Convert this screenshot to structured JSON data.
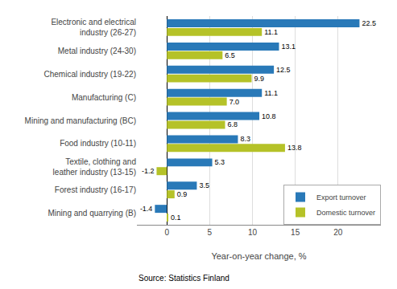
{
  "chart_data": {
    "type": "bar",
    "orientation": "horizontal",
    "categories": [
      "Electronic and electrical\nindustry (26-27)",
      "Metal industry (24-30)",
      "Chemical industry (19-22)",
      "Manufacturing (C)",
      "Mining and manufacturing (BC)",
      "Food industry (10-11)",
      "Textile, clothing and\nleather industry (13-15)",
      "Forest industry (16-17)",
      "Mining and quarrying (B)"
    ],
    "series": [
      {
        "name": "Export turnover",
        "color": "#2979b8",
        "values": [
          22.5,
          13.1,
          12.5,
          11.1,
          10.8,
          8.3,
          5.3,
          3.5,
          -1.4
        ],
        "value_labels": [
          "22.5",
          "13.1",
          "12.5",
          "11.1",
          "10.8",
          "8.3",
          "5.3",
          "3.5",
          "-1.4"
        ]
      },
      {
        "name": "Domestic turnover",
        "color": "#b5c228",
        "values": [
          11.1,
          6.5,
          9.9,
          7.0,
          6.8,
          13.8,
          -1.2,
          0.9,
          0.1
        ],
        "value_labels": [
          "11.1",
          "6.5",
          "9.9",
          "7.0",
          "6.8",
          "13.8",
          "-1.2",
          "0.9",
          "0.1"
        ]
      }
    ],
    "xlabel": "Year-on-year change, %",
    "xlim": [
      -3.5,
      25
    ],
    "xticks": [
      0,
      5,
      10,
      15,
      20
    ],
    "grid": true,
    "legend": "lower right",
    "data_labels": true,
    "annotations": [
      "Source: Statistics Finland"
    ]
  }
}
